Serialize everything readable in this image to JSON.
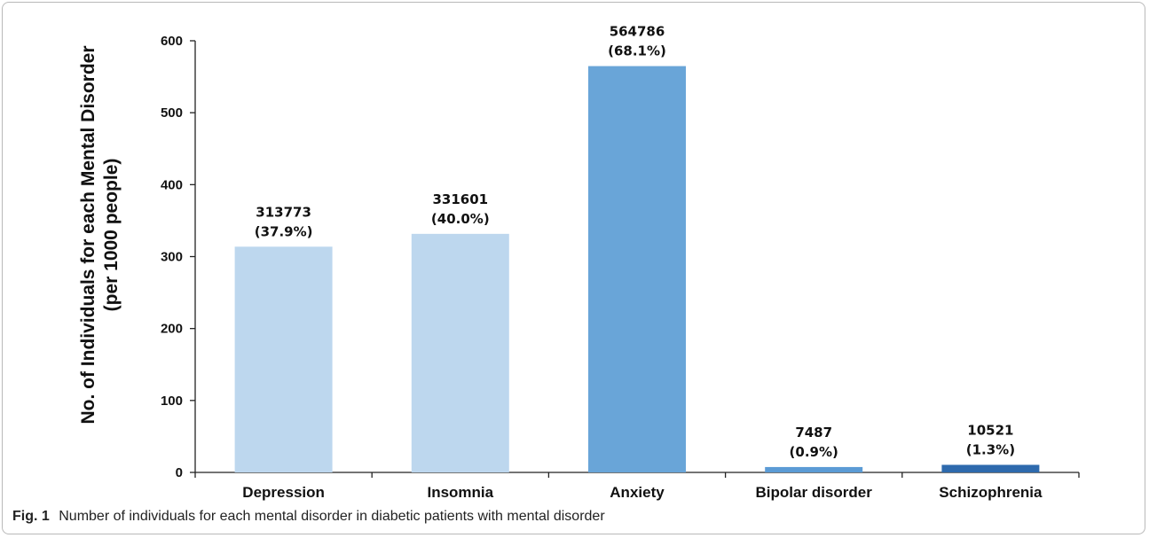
{
  "caption": {
    "fig_label": "Fig. 1",
    "text": "Number of individuals for each mental disorder in diabetic patients with mental disorder"
  },
  "chart_data": {
    "type": "bar",
    "categories": [
      "Depression",
      "Insomnia",
      "Anxiety",
      "Bipolar disorder",
      "Schizophrenia"
    ],
    "values": [
      313.773,
      331.601,
      564.786,
      7.487,
      10.521
    ],
    "counts": [
      "313773",
      "331601",
      "564786",
      "7487",
      "10521"
    ],
    "percents": [
      "(37.9%)",
      "(40.0%)",
      "(68.1%)",
      "(0.9%)",
      "(1.3%)"
    ],
    "colors": [
      "#bdd7ee",
      "#bdd7ee",
      "#69a5d8",
      "#5b9bd5",
      "#2e6aad"
    ],
    "ylabel_line1": "No. of Individuals for each Mental Disorder",
    "ylabel_line2": "(per 1000 people)",
    "ylim": [
      0,
      600
    ],
    "yticks": [
      0,
      100,
      200,
      300,
      400,
      500,
      600
    ],
    "grid": false
  }
}
